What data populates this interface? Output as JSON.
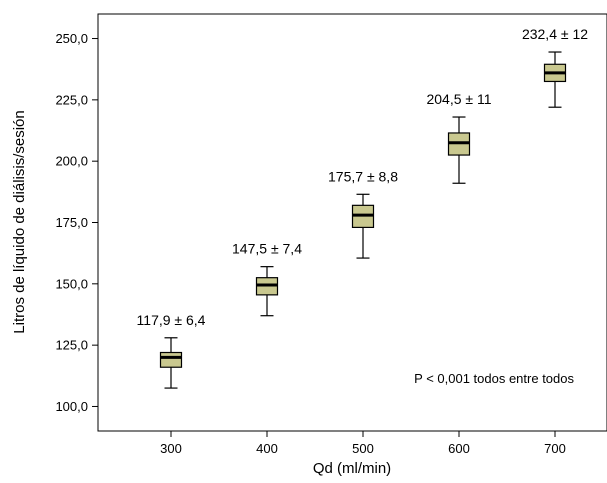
{
  "chart_data": {
    "type": "boxplot",
    "xlabel": "Qd (ml/min)",
    "ylabel": "Litros de líquido de diálisis/sesión",
    "ylim": [
      90,
      260
    ],
    "yticks": [
      100,
      125,
      150,
      175,
      200,
      225,
      250
    ],
    "ytick_labels": [
      "100,0",
      "125,0",
      "150,0",
      "175,0",
      "200,0",
      "225,0",
      "250,0"
    ],
    "categories": [
      "300",
      "400",
      "500",
      "600",
      "700"
    ],
    "boxes": [
      {
        "category": "300",
        "whisker_low": 107.5,
        "q1": 116.0,
        "median": 120.0,
        "q3": 122.0,
        "whisker_high": 128.0
      },
      {
        "category": "400",
        "whisker_low": 137.0,
        "q1": 145.5,
        "median": 149.5,
        "q3": 152.5,
        "whisker_high": 157.0
      },
      {
        "category": "500",
        "whisker_low": 160.5,
        "q1": 173.0,
        "median": 178.0,
        "q3": 182.0,
        "whisker_high": 186.5
      },
      {
        "category": "600",
        "whisker_low": 191.0,
        "q1": 202.5,
        "median": 207.5,
        "q3": 211.5,
        "whisker_high": 218.0
      },
      {
        "category": "700",
        "whisker_low": 222.0,
        "q1": 232.5,
        "median": 236.0,
        "q3": 239.5,
        "whisker_high": 244.5
      }
    ],
    "annotations": [
      "117,9 ± 6,4",
      "147,5 ± 7,4",
      "175,7 ± 8,8",
      "204,5 ± 11",
      "232,4 ± 12"
    ],
    "note": "P < 0,001 todos entre todos",
    "box_color": "#c9c88f",
    "box_stroke": "#000000",
    "grid": false,
    "legend": "none"
  }
}
